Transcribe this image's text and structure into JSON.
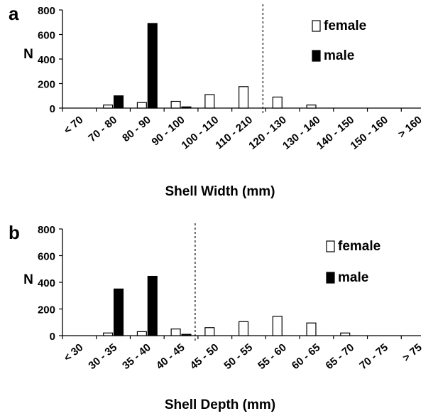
{
  "colors": {
    "female": "#ffffff",
    "male": "#000000",
    "axis": "#000000"
  },
  "chart_data": [
    {
      "type": "bar",
      "panel_label": "a",
      "xlabel": "Shell Width (mm)",
      "ylabel": "N",
      "ylim": [
        0,
        800
      ],
      "yticks": [
        "0",
        "200",
        "400",
        "600",
        "800"
      ],
      "categories": [
        "< 70",
        "70 - 80",
        "80 - 90",
        "90 - 100",
        "100 - 110",
        "110 - 210",
        "120 - 130",
        "130 - 140",
        "140 - 150",
        "150 - 160",
        "> 160"
      ],
      "series": [
        {
          "name": "female",
          "values": [
            0,
            25,
            45,
            55,
            110,
            175,
            90,
            25,
            0,
            0,
            0
          ]
        },
        {
          "name": "male",
          "values": [
            0,
            100,
            690,
            10,
            0,
            0,
            0,
            0,
            0,
            0,
            0
          ]
        }
      ],
      "threshold_between": [
        "110 - 210",
        "120 - 130"
      ],
      "legend_position": "top-right",
      "grid": false
    },
    {
      "type": "bar",
      "panel_label": "b",
      "xlabel": "Shell Depth (mm)",
      "ylabel": "N",
      "ylim": [
        0,
        800
      ],
      "yticks": [
        "0",
        "200",
        "400",
        "600",
        "800"
      ],
      "categories": [
        "< 30",
        "30 - 35",
        "35 - 40",
        "40 - 45",
        "45 - 50",
        "50 - 55",
        "55 - 60",
        "60 - 65",
        "65 - 70",
        "70 - 75",
        "> 75"
      ],
      "series": [
        {
          "name": "female",
          "values": [
            0,
            20,
            30,
            50,
            60,
            105,
            145,
            95,
            20,
            0,
            0
          ]
        },
        {
          "name": "male",
          "values": [
            0,
            350,
            445,
            10,
            0,
            0,
            0,
            0,
            0,
            0,
            0
          ]
        }
      ],
      "threshold_between": [
        "40 - 45",
        "45 - 50"
      ],
      "legend_position": "top-right",
      "grid": false
    }
  ]
}
